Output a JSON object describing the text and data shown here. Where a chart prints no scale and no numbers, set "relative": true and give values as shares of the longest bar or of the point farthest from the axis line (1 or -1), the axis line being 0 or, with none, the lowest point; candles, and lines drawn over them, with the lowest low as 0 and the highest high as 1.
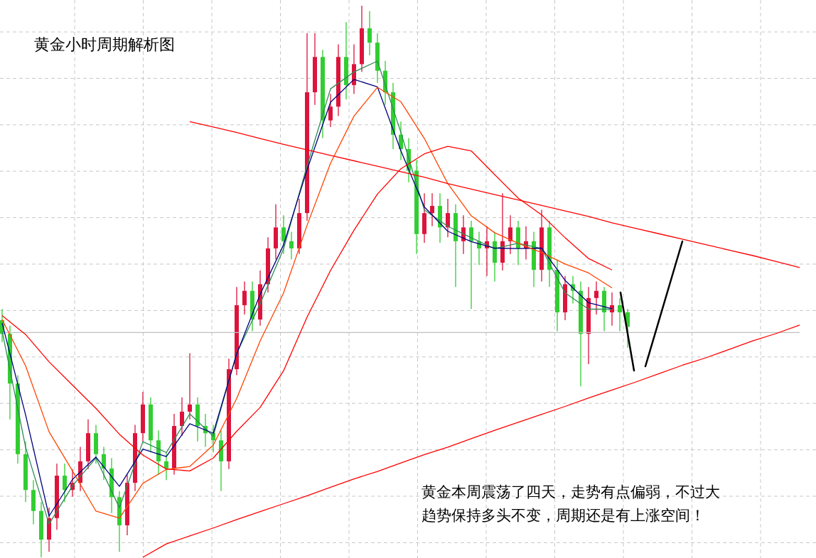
{
  "chart_data": [
    {
      "type": "candlestick",
      "relative": true,
      "title": "黄金小时周期解析图",
      "annotations": [
        "黄金本周震荡了四天，走势有点偏弱，不过大趋势保持多头不变，周期还是有上涨空间！"
      ],
      "grid": true,
      "categories": [
        null,
        null,
        null,
        null,
        null,
        null,
        null,
        null,
        null,
        null,
        null,
        null,
        null,
        null,
        null,
        null,
        null,
        null,
        null,
        null,
        null,
        null,
        null,
        null,
        null,
        null,
        null,
        null,
        null,
        null,
        null,
        null,
        null,
        null,
        null,
        null,
        null,
        null,
        null,
        null,
        null,
        null,
        null,
        null,
        null,
        null,
        null,
        null,
        null,
        null,
        null,
        null,
        null,
        null,
        null,
        null,
        null,
        null,
        null,
        null,
        null,
        null,
        null,
        null,
        null,
        null,
        null,
        null,
        null,
        null,
        null,
        null,
        null,
        null,
        null,
        null,
        null,
        null,
        null,
        null,
        null
      ],
      "ohlc": [
        [
          0.43,
          0.45,
          0.39,
          0.405
        ],
        [
          0.405,
          0.42,
          0.25,
          0.315
        ],
        [
          0.315,
          0.33,
          0.17,
          0.187
        ],
        [
          0.187,
          0.21,
          0.1,
          0.122
        ],
        [
          0.122,
          0.14,
          0.06,
          0.084
        ],
        [
          0.084,
          0.1,
          0,
          0.032
        ],
        [
          0.032,
          0.09,
          0.01,
          0.071
        ],
        [
          0.071,
          0.17,
          0.05,
          0.148
        ],
        [
          0.148,
          0.17,
          0.1,
          0.122
        ],
        [
          0.122,
          0.16,
          0.11,
          0.135
        ],
        [
          0.135,
          0.2,
          0.12,
          0.174
        ],
        [
          0.174,
          0.25,
          0.16,
          0.225
        ],
        [
          0.225,
          0.24,
          0.17,
          0.187
        ],
        [
          0.187,
          0.2,
          0.14,
          0.161
        ],
        [
          0.161,
          0.18,
          0.08,
          0.109
        ],
        [
          0.109,
          0.12,
          0.01,
          0.058
        ],
        [
          0.058,
          0.15,
          0.04,
          0.135
        ],
        [
          0.135,
          0.24,
          0.12,
          0.225
        ],
        [
          0.225,
          0.3,
          0.21,
          0.277
        ],
        [
          0.277,
          0.29,
          0.19,
          0.212
        ],
        [
          0.212,
          0.23,
          0.15,
          0.174
        ],
        [
          0.174,
          0.19,
          0.14,
          0.161
        ],
        [
          0.161,
          0.26,
          0.15,
          0.238
        ],
        [
          0.238,
          0.29,
          0.22,
          0.264
        ],
        [
          0.264,
          0.37,
          0.25,
          0.277
        ],
        [
          0.277,
          0.29,
          0.21,
          0.238
        ],
        [
          0.238,
          0.26,
          0.2,
          0.225
        ],
        [
          0.225,
          0.24,
          0.19,
          0.212
        ],
        [
          0.212,
          0.23,
          0.12,
          0.174
        ],
        [
          0.174,
          0.36,
          0.16,
          0.341
        ],
        [
          0.341,
          0.49,
          0.33,
          0.457
        ],
        [
          0.457,
          0.5,
          0.44,
          0.483
        ],
        [
          0.483,
          0.5,
          0.41,
          0.431
        ],
        [
          0.431,
          0.52,
          0.42,
          0.495
        ],
        [
          0.495,
          0.58,
          0.48,
          0.56
        ],
        [
          0.56,
          0.64,
          0.54,
          0.598
        ],
        [
          0.598,
          0.62,
          0.55,
          0.573
        ],
        [
          0.573,
          0.59,
          0.54,
          0.56
        ],
        [
          0.56,
          0.65,
          0.55,
          0.624
        ],
        [
          0.624,
          0.95,
          0.61,
          0.843
        ],
        [
          0.843,
          0.95,
          0.82,
          0.907
        ],
        [
          0.907,
          0.92,
          0.76,
          0.792
        ],
        [
          0.792,
          0.84,
          0.78,
          0.817
        ],
        [
          0.817,
          0.93,
          0.8,
          0.907
        ],
        [
          0.907,
          0.97,
          0.83,
          0.856
        ],
        [
          0.856,
          0.93,
          0.84,
          0.894
        ],
        [
          0.894,
          1,
          0.88,
          0.959
        ],
        [
          0.959,
          0.99,
          0.91,
          0.933
        ],
        [
          0.933,
          0.95,
          0.86,
          0.882
        ],
        [
          0.882,
          0.9,
          0.82,
          0.843
        ],
        [
          0.843,
          0.86,
          0.74,
          0.766
        ],
        [
          0.766,
          0.79,
          0.72,
          0.74
        ],
        [
          0.74,
          0.76,
          0.68,
          0.701
        ],
        [
          0.701,
          0.72,
          0.55,
          0.586
        ],
        [
          0.586,
          0.66,
          0.57,
          0.624
        ],
        [
          0.624,
          0.66,
          0.6,
          0.637
        ],
        [
          0.637,
          0.66,
          0.57,
          0.598
        ],
        [
          0.598,
          0.65,
          0.58,
          0.624
        ],
        [
          0.624,
          0.64,
          0.49,
          0.573
        ],
        [
          0.573,
          0.62,
          0.55,
          0.598
        ],
        [
          0.598,
          0.61,
          0.45,
          0.573
        ],
        [
          0.573,
          0.59,
          0.53,
          0.56
        ],
        [
          0.56,
          0.6,
          0.51,
          0.573
        ],
        [
          0.573,
          0.59,
          0.5,
          0.534
        ],
        [
          0.534,
          0.66,
          0.52,
          0.573
        ],
        [
          0.573,
          0.62,
          0.55,
          0.598
        ],
        [
          0.598,
          0.61,
          0.53,
          0.56
        ],
        [
          0.56,
          0.6,
          0.54,
          0.573
        ],
        [
          0.573,
          0.59,
          0.49,
          0.521
        ],
        [
          0.521,
          0.63,
          0.5,
          0.598
        ],
        [
          0.598,
          0.61,
          0.49,
          0.521
        ],
        [
          0.521,
          0.54,
          0.41,
          0.444
        ],
        [
          0.444,
          0.51,
          0.43,
          0.495
        ],
        [
          0.495,
          0.51,
          0.46,
          0.483
        ],
        [
          0.483,
          0.5,
          0.31,
          0.405
        ],
        [
          0.405,
          0.49,
          0.35,
          0.47
        ],
        [
          0.47,
          0.5,
          0.44,
          0.483
        ],
        [
          0.483,
          0.49,
          0.41,
          0.444
        ],
        [
          0.444,
          0.48,
          0.42,
          0.457
        ],
        [
          0.457,
          0.47,
          0.41,
          0.444
        ],
        [
          0.444,
          0.45,
          0.38,
          0.418
        ]
      ],
      "colors": [
        "#32cd32",
        "#32cd32",
        "#32cd32",
        "#32cd32",
        "#32cd32",
        "#32cd32",
        "#dc143c",
        "#dc143c",
        "#32cd32",
        "#dc143c",
        "#dc143c",
        "#dc143c",
        "#32cd32",
        "#32cd32",
        "#32cd32",
        "#32cd32",
        "#dc143c",
        "#dc143c",
        "#dc143c",
        "#32cd32",
        "#32cd32",
        "#32cd32",
        "#dc143c",
        "#dc143c",
        "#dc143c",
        "#32cd32",
        "#32cd32",
        "#32cd32",
        "#32cd32",
        "#dc143c",
        "#dc143c",
        "#dc143c",
        "#32cd32",
        "#dc143c",
        "#dc143c",
        "#dc143c",
        "#32cd32",
        "#32cd32",
        "#dc143c",
        "#dc143c",
        "#dc143c",
        "#32cd32",
        "#dc143c",
        "#dc143c",
        "#32cd32",
        "#dc143c",
        "#dc143c",
        "#32cd32",
        "#32cd32",
        "#32cd32",
        "#32cd32",
        "#32cd32",
        "#32cd32",
        "#32cd32",
        "#dc143c",
        "#dc143c",
        "#32cd32",
        "#dc143c",
        "#32cd32",
        "#dc143c",
        "#32cd32",
        "#32cd32",
        "#dc143c",
        "#32cd32",
        "#dc143c",
        "#dc143c",
        "#32cd32",
        "#dc143c",
        "#32cd32",
        "#dc143c",
        "#32cd32",
        "#32cd32",
        "#dc143c",
        "#32cd32",
        "#32cd32",
        "#dc143c",
        "#dc143c",
        "#32cd32",
        "#dc143c",
        "#32cd32",
        "#32cd32"
      ]
    },
    {
      "type": "line",
      "relative": true,
      "categories": [
        null,
        null,
        null,
        null,
        null,
        null,
        null,
        null,
        null,
        null,
        null,
        null,
        null,
        null,
        null,
        null,
        null,
        null,
        null,
        null,
        null,
        null,
        null,
        null,
        null,
        null,
        null,
        null,
        null,
        null,
        null,
        null,
        null,
        null,
        null
      ],
      "series": [
        {
          "color": "#c0c0c0",
          "values": [
            0.453,
            0.453,
            0.453,
            0.453,
            0.453,
            0.453,
            0.453,
            0.453,
            0.453,
            0.453,
            0.453,
            0.453,
            0.453,
            0.453,
            0.453,
            0.453,
            0.453,
            0.453,
            0.453,
            0.453,
            0.453,
            0.453,
            0.453,
            0.453,
            0.453,
            0.453,
            0.453,
            0.453,
            0.453,
            0.453,
            0.453,
            0.453,
            0.453,
            0.453,
            0.453
          ]
        },
        {
          "color": "#2e8b57",
          "values": [
            0.456,
            0.222,
            0.067,
            0.144,
            0.2,
            0.1,
            0.233,
            0.211,
            0.289,
            0.244,
            0.411,
            0.511,
            0.622,
            0.789,
            0.944,
            0.978,
            1,
            0.856,
            0.7,
            0.667,
            0.644,
            0.622,
            0.633,
            0.622,
            0.533,
            0.5,
            0.5,
            null,
            null,
            null,
            null,
            null,
            null,
            null,
            null
          ]
        },
        {
          "color": "#000080",
          "values": [
            0.472,
            0.287,
            0.083,
            0.157,
            0.202,
            0.143,
            0.218,
            0.203,
            0.269,
            0.25,
            0.41,
            0.53,
            0.63,
            0.781,
            0.917,
            0.963,
            0.948,
            0.819,
            0.706,
            0.657,
            0.636,
            0.623,
            0.622,
            0.623,
            0.558,
            0.513,
            0.501,
            null,
            null,
            null,
            null,
            null,
            null,
            null,
            null
          ]
        },
        {
          "color": "#ff4500",
          "values": [
            0.479,
            0.386,
            0.253,
            0.174,
            0.093,
            0.079,
            0.149,
            0.177,
            0.183,
            0.226,
            0.32,
            0.436,
            0.533,
            0.669,
            0.794,
            0.889,
            0.947,
            0.918,
            0.844,
            0.753,
            0.688,
            0.654,
            0.633,
            0.614,
            0.591,
            0.573,
            0.543,
            null,
            null,
            null,
            null,
            null,
            null,
            null,
            null
          ]
        },
        {
          "color": "#ff0000",
          "values": [
            0.487,
            0.449,
            0.394,
            0.347,
            0.3,
            0.248,
            0.206,
            0.178,
            0.174,
            0.2,
            0.254,
            0.302,
            0.376,
            0.484,
            0.578,
            0.659,
            0.732,
            0.783,
            0.813,
            0.828,
            0.819,
            0.771,
            0.724,
            0.69,
            0.644,
            0.602,
            0.579,
            null,
            null,
            null,
            null,
            null,
            null,
            null,
            null
          ]
        },
        {
          "color": "#ff0000",
          "values": [
            null,
            null,
            null,
            null,
            null,
            null,
            null,
            null,
            0.878,
            0.867,
            0.856,
            0.844,
            0.832,
            0.821,
            0.81,
            0.799,
            0.788,
            0.777,
            0.766,
            0.753,
            0.742,
            0.731,
            0.72,
            0.709,
            0.698,
            0.687,
            0.674,
            0.663,
            0.652,
            0.641,
            0.63,
            0.619,
            0.608,
            0.596,
            0.584
          ]
        },
        {
          "color": "#ff0000",
          "values": [
            null,
            null,
            null,
            null,
            null,
            null,
            0,
            0.027,
            0.043,
            0.059,
            0.076,
            0.092,
            0.108,
            0.124,
            0.141,
            0.158,
            0.173,
            0.19,
            0.207,
            0.222,
            0.239,
            0.256,
            0.272,
            0.288,
            0.304,
            0.321,
            0.337,
            0.353,
            0.37,
            0.387,
            0.402,
            0.419,
            0.436,
            0.451,
            0.468
          ]
        }
      ]
    }
  ]
}
